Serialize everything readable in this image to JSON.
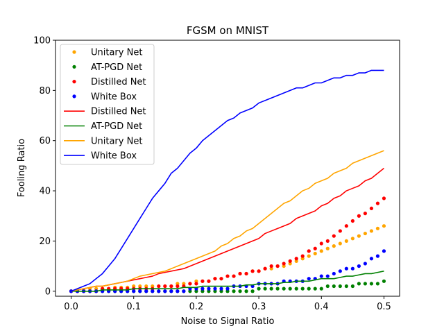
{
  "chart_data": {
    "type": "line",
    "title": "FGSM on MNIST",
    "xlabel": "Noise to Signal Ratio",
    "ylabel": "Fooling Ratio",
    "xlim": [
      -0.025,
      0.525
    ],
    "ylim": [
      -2,
      100
    ],
    "xticks": [
      0.0,
      0.1,
      0.2,
      0.3,
      0.4,
      0.5
    ],
    "xtick_labels": [
      "0.0",
      "0.1",
      "0.2",
      "0.3",
      "0.4",
      "0.5"
    ],
    "yticks": [
      0,
      20,
      40,
      60,
      80,
      100
    ],
    "ytick_labels": [
      "0",
      "20",
      "40",
      "60",
      "80",
      "100"
    ],
    "grid": false,
    "legend_position": "upper-left",
    "x": [
      0.0,
      0.01,
      0.02,
      0.03,
      0.04,
      0.05,
      0.06,
      0.07,
      0.08,
      0.09,
      0.1,
      0.11,
      0.12,
      0.13,
      0.14,
      0.15,
      0.16,
      0.17,
      0.18,
      0.19,
      0.2,
      0.21,
      0.22,
      0.23,
      0.24,
      0.25,
      0.26,
      0.27,
      0.28,
      0.29,
      0.3,
      0.31,
      0.32,
      0.33,
      0.34,
      0.35,
      0.36,
      0.37,
      0.38,
      0.39,
      0.4,
      0.41,
      0.42,
      0.43,
      0.44,
      0.45,
      0.46,
      0.47,
      0.48,
      0.49,
      0.5
    ],
    "series": [
      {
        "name": "Unitary Net",
        "style": "dots",
        "color": "#ffa500",
        "values": [
          0,
          0.5,
          0.5,
          1,
          1,
          1,
          1,
          1.5,
          1.5,
          1.5,
          2,
          2,
          2,
          2,
          2,
          2,
          2,
          3,
          3,
          3,
          4,
          4,
          4,
          5,
          5,
          6,
          6,
          7,
          7,
          8,
          8,
          9,
          9,
          10,
          10,
          11,
          12,
          13,
          14,
          15,
          16,
          17,
          18,
          19,
          20,
          21,
          22,
          23,
          24,
          25,
          26
        ]
      },
      {
        "name": "AT-PGD Net",
        "style": "dots",
        "color": "#008000",
        "values": [
          0,
          0,
          0,
          0,
          0,
          0,
          0,
          0,
          0,
          0,
          0,
          0,
          0,
          0,
          0,
          0,
          0,
          0,
          0,
          0,
          0,
          0,
          0,
          0,
          0,
          0,
          0,
          0,
          0,
          0,
          1,
          1,
          1,
          1,
          1,
          1,
          1,
          1,
          1,
          1,
          1,
          2,
          2,
          2,
          2,
          2,
          3,
          3,
          3,
          3,
          4
        ]
      },
      {
        "name": "Distilled Net",
        "style": "dots",
        "color": "#ff0000",
        "values": [
          0,
          0,
          0,
          0,
          0,
          1,
          1,
          1,
          1,
          1,
          1,
          1,
          1,
          1,
          2,
          2,
          2,
          2,
          2,
          3,
          3,
          4,
          4,
          5,
          5,
          6,
          6,
          7,
          7,
          8,
          8,
          9,
          10,
          10,
          11,
          12,
          13,
          14,
          16,
          17,
          19,
          20,
          22,
          24,
          26,
          28,
          30,
          31,
          33,
          35,
          37
        ]
      },
      {
        "name": "White Box",
        "style": "dots",
        "color": "#0000ff",
        "values": [
          0,
          0,
          0,
          0,
          0,
          0,
          0,
          0,
          0,
          0,
          0,
          0,
          0,
          0,
          0,
          0,
          0,
          0,
          0,
          1,
          1,
          1,
          1,
          1,
          1,
          1,
          2,
          2,
          2,
          2,
          3,
          3,
          3,
          3,
          4,
          4,
          4,
          4,
          5,
          5,
          6,
          6,
          7,
          8,
          9,
          9,
          10,
          11,
          13,
          14,
          16
        ]
      },
      {
        "name": "Distilled Net",
        "style": "line",
        "color": "#ff0000",
        "values": [
          0,
          0.5,
          1,
          1.5,
          2,
          2,
          2.5,
          3,
          3.5,
          4,
          4.5,
          5,
          5.5,
          6,
          7,
          7.5,
          8,
          8.5,
          9,
          10,
          11,
          12,
          13,
          14,
          15,
          16,
          17,
          18,
          19,
          20,
          21,
          23,
          24,
          25,
          26,
          27,
          29,
          30,
          31,
          32,
          34,
          35,
          37,
          38,
          40,
          41,
          42,
          44,
          45,
          47,
          49
        ]
      },
      {
        "name": "AT-PGD Net",
        "style": "line",
        "color": "#008000",
        "values": [
          0,
          0,
          0,
          0,
          0,
          0.5,
          0.5,
          0.5,
          0.5,
          0.5,
          1,
          1,
          1,
          1,
          1,
          1,
          1,
          1,
          1.5,
          1.5,
          1.5,
          2,
          2,
          2,
          2,
          2,
          2,
          2,
          2.5,
          2.5,
          3,
          3,
          3,
          3,
          3.5,
          3.5,
          4,
          4,
          4,
          4.5,
          5,
          5,
          5,
          5.5,
          6,
          6,
          6.5,
          7,
          7,
          7.5,
          8
        ]
      },
      {
        "name": "Unitary Net",
        "style": "line",
        "color": "#ffa500",
        "values": [
          0,
          0.5,
          1,
          1.5,
          2,
          2,
          2.5,
          3,
          3.5,
          4,
          5,
          6,
          6.5,
          7,
          7.5,
          8,
          9,
          10,
          11,
          12,
          13,
          14,
          15,
          16,
          18,
          19,
          21,
          22,
          24,
          25,
          27,
          29,
          31,
          33,
          35,
          36,
          38,
          40,
          41,
          43,
          44,
          45,
          47,
          48,
          49,
          51,
          52,
          53,
          54,
          55,
          56
        ]
      },
      {
        "name": "White Box",
        "style": "line",
        "color": "#0000ff",
        "values": [
          0,
          1,
          2,
          3,
          5,
          7,
          10,
          13,
          17,
          21,
          25,
          29,
          33,
          37,
          40,
          43,
          47,
          49,
          52,
          55,
          57,
          60,
          62,
          64,
          66,
          68,
          69,
          71,
          72,
          73,
          75,
          76,
          77,
          78,
          79,
          80,
          81,
          81,
          82,
          83,
          83,
          84,
          85,
          85,
          86,
          86,
          87,
          87,
          88,
          88,
          88
        ]
      }
    ]
  }
}
